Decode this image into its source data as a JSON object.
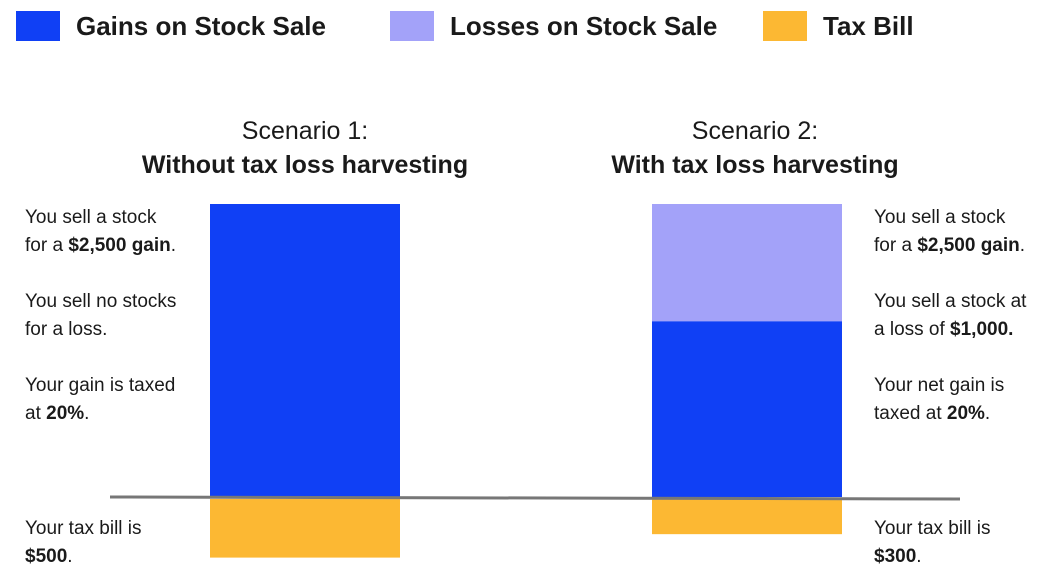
{
  "colors": {
    "gains": "#1040f5",
    "losses": "#a3a2f9",
    "tax": "#fcb833",
    "baseline": "#777777"
  },
  "legend": [
    {
      "key": "gains",
      "label": "Gains on Stock Sale"
    },
    {
      "key": "losses",
      "label": "Losses on Stock Sale"
    },
    {
      "key": "tax",
      "label": "Tax Bill"
    }
  ],
  "chart_data": {
    "type": "bar",
    "categories": [
      "Scenario 1",
      "Scenario 2"
    ],
    "series": [
      {
        "name": "Gains on Stock Sale",
        "values": [
          2500,
          1500
        ]
      },
      {
        "name": "Losses on Stock Sale",
        "values": [
          0,
          1000
        ]
      },
      {
        "name": "Tax Bill",
        "values": [
          500,
          300
        ]
      }
    ],
    "stacked": true,
    "tax_below_baseline": true,
    "legend_position": "top",
    "grid": false
  },
  "scenario1": {
    "title_line1": "Scenario 1:",
    "title_line2": "Without tax loss harvesting",
    "note1": {
      "pre": "You sell a stock",
      "line2_pre": "for a ",
      "bold": "$2,500 gain",
      "post": "."
    },
    "note2": {
      "line1": "You sell no stocks",
      "line2": "for a loss."
    },
    "note3": {
      "line1": "Your gain is taxed",
      "line2_pre": "at ",
      "bold": "20%",
      "post": "."
    },
    "tax_note": {
      "line1": "Your tax bill is",
      "bold": "$500",
      "post": "."
    }
  },
  "scenario2": {
    "title_line1": "Scenario 2:",
    "title_line2": "With tax loss harvesting",
    "note1": {
      "pre": "You sell a stock",
      "line2_pre": "for a ",
      "bold": "$2,500 gain",
      "post": "."
    },
    "note2": {
      "line1": "You sell a stock at",
      "line2_pre": "a loss of ",
      "bold": "$1,000."
    },
    "note3": {
      "line1": "Your net gain is",
      "line2_pre": "taxed at ",
      "bold": "20%",
      "post": "."
    },
    "tax_note": {
      "line1": "Your tax bill is",
      "bold": "$300",
      "post": "."
    }
  }
}
